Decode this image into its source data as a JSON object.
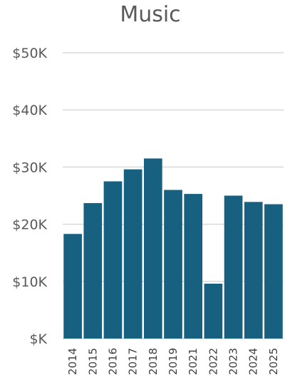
{
  "chart_data": {
    "type": "bar",
    "title": "Music",
    "xlabel": "",
    "ylabel": "",
    "categories": [
      "2014",
      "2015",
      "2016",
      "2017",
      "2018",
      "2019",
      "2021",
      "2022",
      "2023",
      "2024",
      "2025"
    ],
    "series": [
      {
        "values": [
          18300,
          23700,
          27500,
          29600,
          31500,
          26000,
          25300,
          9600,
          25000,
          23900,
          23500
        ]
      }
    ],
    "ylim": [
      0,
      50000
    ],
    "yticks": [
      0,
      10000,
      20000,
      30000,
      40000,
      50000
    ],
    "ytick_labels": [
      "$K",
      "$10K",
      "$20K",
      "$30K",
      "$40K",
      "$50K"
    ],
    "grid": true,
    "legend": "none",
    "bar_color": "#17607f",
    "grid_color": "#d9d9d9",
    "text_color": "#595959"
  }
}
